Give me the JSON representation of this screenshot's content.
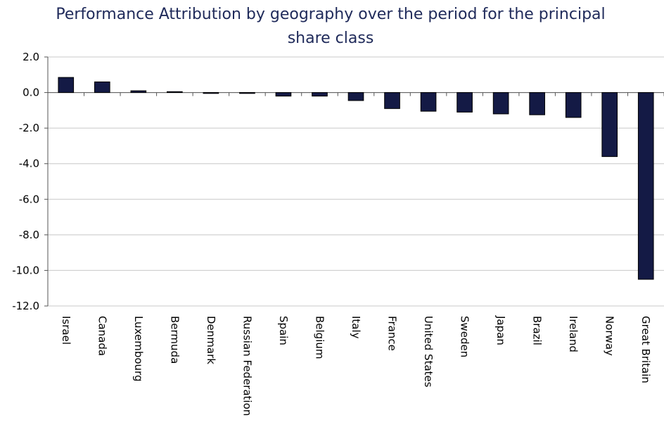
{
  "chart_data": {
    "type": "bar",
    "title": "Performance Attribution by geography over the period for the principal share class",
    "categories": [
      "Israel",
      "Canada",
      "Luxembourg",
      "Bermuda",
      "Denmark",
      "Russian Federation",
      "Spain",
      "Belgium",
      "Italy",
      "France",
      "United States",
      "Sweden",
      "Japan",
      "Brazil",
      "Ireland",
      "Norway",
      "Great Britain"
    ],
    "values": [
      0.85,
      0.6,
      0.1,
      0.05,
      -0.05,
      -0.05,
      -0.2,
      -0.2,
      -0.45,
      -0.9,
      -1.05,
      -1.1,
      -1.2,
      -1.25,
      -1.4,
      -3.6,
      -10.5
    ],
    "color": "#141a45",
    "ylim": [
      -12,
      2
    ],
    "yticks": [
      {
        "value": 2,
        "label": "2.0"
      },
      {
        "value": 0,
        "label": "0.0"
      },
      {
        "value": -2,
        "label": "-2.0"
      },
      {
        "value": -4,
        "label": "-4.0"
      },
      {
        "value": -6,
        "label": "-6.0"
      },
      {
        "value": -8,
        "label": "-8.0"
      },
      {
        "value": -10,
        "label": "-10.0"
      },
      {
        "value": -12,
        "label": "-12.0"
      }
    ],
    "grid": true
  }
}
